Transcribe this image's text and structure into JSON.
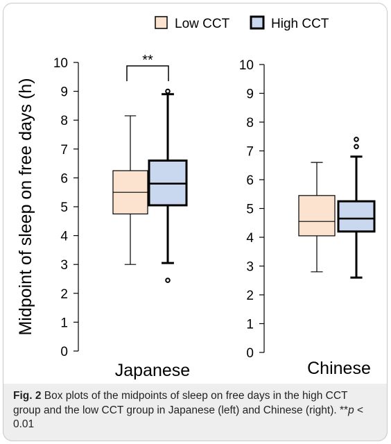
{
  "legend": {
    "low_label": "Low CCT",
    "high_label": "High CCT"
  },
  "colors": {
    "low_fill": "#fbe3cf",
    "high_fill": "#c9d8ee",
    "stroke": "#000000",
    "caption_bg": "#eeeeee"
  },
  "chart_data": [
    {
      "type": "box",
      "xlabel": "Japanese",
      "ylabel": "Midpoint of sleep on free days (h)",
      "ylim": [
        0,
        10
      ],
      "yticks": [
        0,
        1,
        2,
        3,
        4,
        5,
        6,
        7,
        8,
        9,
        10
      ],
      "significance": "**",
      "series": [
        {
          "name": "Low CCT",
          "min": 3.0,
          "q1": 4.75,
          "median": 5.5,
          "q3": 6.25,
          "max": 8.15,
          "outliers": []
        },
        {
          "name": "High CCT",
          "min": 3.05,
          "q1": 5.05,
          "median": 5.8,
          "q3": 6.6,
          "max": 8.9,
          "outliers": [
            2.45,
            9.0
          ]
        }
      ]
    },
    {
      "type": "box",
      "xlabel": "Chinese",
      "ylabel": "",
      "ylim": [
        0,
        10
      ],
      "yticks": [
        0,
        1,
        2,
        3,
        4,
        5,
        6,
        7,
        8,
        9,
        10
      ],
      "significance": "",
      "series": [
        {
          "name": "Low CCT",
          "min": 2.8,
          "q1": 4.05,
          "median": 4.55,
          "q3": 5.45,
          "max": 6.6,
          "outliers": []
        },
        {
          "name": "High CCT",
          "min": 2.6,
          "q1": 4.2,
          "median": 4.65,
          "q3": 5.25,
          "max": 6.8,
          "outliers": [
            7.15,
            7.4
          ]
        }
      ]
    }
  ],
  "caption": {
    "label": "Fig. 2",
    "text": " Box plots of the midpoints of sleep on free days in the high CCT group and the low CCT group in Japanese (left) and Chinese (right). **",
    "italic": "p",
    "tail": " < 0.01"
  }
}
